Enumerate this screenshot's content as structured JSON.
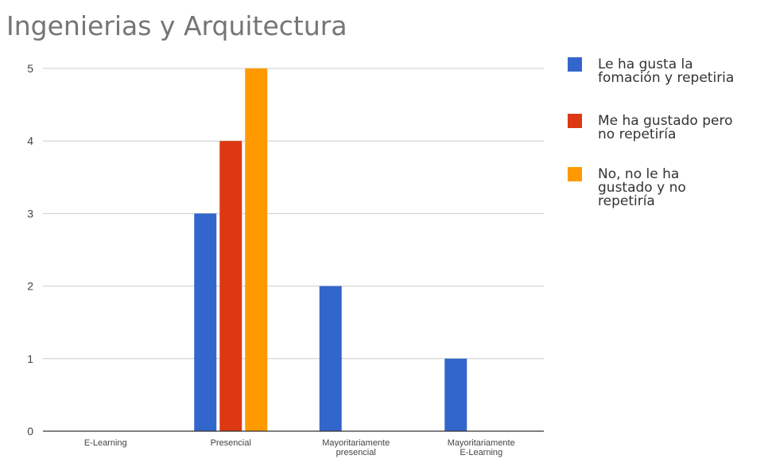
{
  "chart_data": {
    "type": "bar",
    "title": "Ingenierias y Arquitectura",
    "xlabel": "",
    "ylabel": "",
    "ylim": [
      0,
      5
    ],
    "yticks": [
      0,
      1,
      2,
      3,
      4,
      5
    ],
    "grid": true,
    "legend_position": "right",
    "categories": [
      [
        "E-Learning"
      ],
      [
        "Presencial"
      ],
      [
        "Mayoritariamente",
        "presencial"
      ],
      [
        "Mayoritariamente",
        "E-Learning"
      ]
    ],
    "series": [
      {
        "name": [
          "Le ha gusta la",
          "fomación y repetiria"
        ],
        "color": "#3366cc",
        "values": [
          0,
          3,
          2,
          1
        ]
      },
      {
        "name": [
          "Me ha gustado pero",
          "no repetiría"
        ],
        "color": "#dc3912",
        "values": [
          0,
          4,
          0,
          0
        ]
      },
      {
        "name": [
          "No, no le ha",
          "gustado y no",
          "repetiría"
        ],
        "color": "#ff9900",
        "values": [
          0,
          5,
          0,
          0
        ]
      }
    ]
  }
}
